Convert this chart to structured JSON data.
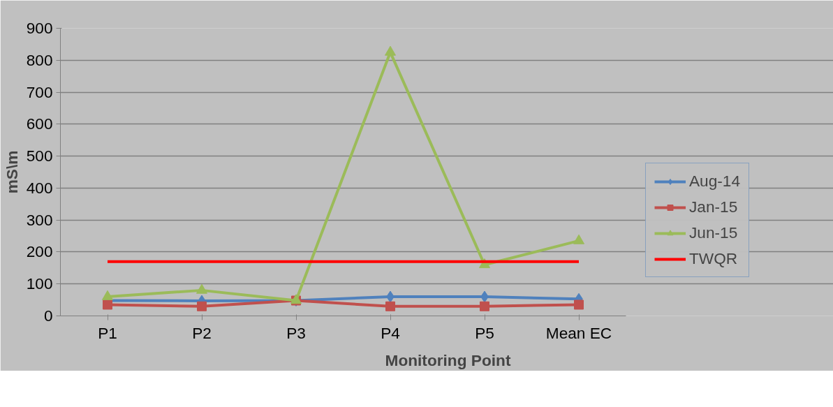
{
  "chart_data": {
    "type": "line",
    "xlabel": "Monitoring Point",
    "ylabel": "mS\\m",
    "categories": [
      "P1",
      "P2",
      "P3",
      "P4",
      "P5",
      "Mean EC"
    ],
    "series": [
      {
        "name": "Aug-14",
        "color": "#4f81bd",
        "marker": "diamond",
        "values": [
          48,
          47,
          48,
          60,
          60,
          53
        ]
      },
      {
        "name": "Jan-15",
        "color": "#c0504d",
        "marker": "square",
        "values": [
          35,
          30,
          48,
          30,
          30,
          35
        ]
      },
      {
        "name": "Jun-15",
        "color": "#9bbb59",
        "marker": "triangle",
        "values": [
          60,
          80,
          48,
          825,
          160,
          235
        ]
      },
      {
        "name": "TWQR",
        "color": "#ff0000",
        "marker": "none",
        "values": [
          170,
          170,
          170,
          170,
          170,
          170
        ]
      }
    ],
    "ylim": [
      0,
      900
    ],
    "yticks": [
      0,
      100,
      200,
      300,
      400,
      500,
      600,
      700,
      800,
      900
    ],
    "grid": "y",
    "legend": "right",
    "line_style": "solid"
  }
}
